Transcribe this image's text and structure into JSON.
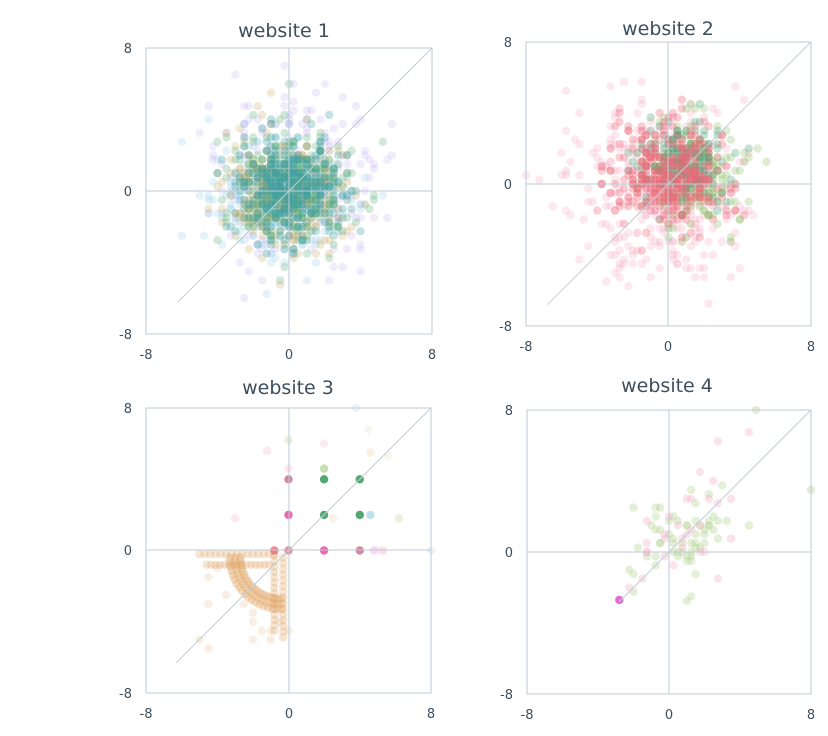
{
  "chart_data": [
    {
      "type": "scatter",
      "title": "website 1",
      "xlim": [
        -8,
        8
      ],
      "ylim": [
        -8,
        8
      ],
      "xticks": [
        "-8",
        "0",
        "8"
      ],
      "yticks": [
        "-8",
        "0",
        "8"
      ],
      "grid": false,
      "reference_line": "y = x",
      "series": [
        {
          "color": "#b9a8f2",
          "cx": 0.3,
          "cy": 0.4,
          "sx": 2.4,
          "sy": 2.3,
          "n": 230,
          "opacity": 0.22
        },
        {
          "color": "#8fcfe6",
          "cx": -0.6,
          "cy": -0.4,
          "sx": 1.9,
          "sy": 1.7,
          "n": 300,
          "opacity": 0.25
        },
        {
          "color": "#c9a85a",
          "cx": -0.3,
          "cy": -0.2,
          "sx": 1.8,
          "sy": 1.6,
          "n": 320,
          "opacity": 0.25
        },
        {
          "color": "#5fb07a",
          "cx": 0.1,
          "cy": 0.2,
          "sx": 1.6,
          "sy": 1.5,
          "n": 330,
          "opacity": 0.28
        },
        {
          "color": "#3e9fa3",
          "cx": 0.0,
          "cy": 0.1,
          "sx": 1.4,
          "sy": 1.4,
          "n": 340,
          "opacity": 0.3
        }
      ]
    },
    {
      "type": "scatter",
      "title": "website 2",
      "xlim": [
        -8,
        8
      ],
      "ylim": [
        -8,
        8
      ],
      "xticks": [
        "-8",
        "0",
        "8"
      ],
      "yticks": [
        "-8",
        "0",
        "8"
      ],
      "grid": false,
      "reference_line": "y = x",
      "series": [
        {
          "color": "#f4a3bd",
          "cx": -0.6,
          "cy": -0.5,
          "sx": 2.4,
          "sy": 2.4,
          "n": 330,
          "opacity": 0.25
        },
        {
          "color": "#8ebf6a",
          "cx": 1.5,
          "cy": 0.3,
          "sx": 1.4,
          "sy": 1.8,
          "n": 180,
          "opacity": 0.3
        },
        {
          "color": "#44a374",
          "cx": 0.7,
          "cy": 1.2,
          "sx": 1.3,
          "sy": 1.1,
          "n": 200,
          "opacity": 0.3
        },
        {
          "color": "#ec6a7a",
          "cx": 0.0,
          "cy": 0.6,
          "sx": 1.6,
          "sy": 1.4,
          "n": 360,
          "opacity": 0.33
        }
      ]
    },
    {
      "type": "scatter",
      "title": "website 3",
      "xlim": [
        -8,
        8
      ],
      "ylim": [
        -8,
        8
      ],
      "xticks": [
        "-8",
        "0",
        "8"
      ],
      "yticks": [
        "-8",
        "0",
        "8"
      ],
      "grid": false,
      "reference_line": "y = x",
      "arc_series": {
        "color": "#e0a262",
        "opacity": 0.35
      },
      "points": [
        {
          "x": 0,
          "y": 4,
          "color": "#c46a8e",
          "opacity": 0.8
        },
        {
          "x": 0,
          "y": 2,
          "color": "#e85aa8",
          "opacity": 0.9
        },
        {
          "x": 0,
          "y": 0,
          "color": "#ec6a7a",
          "opacity": 0.8
        },
        {
          "x": -0.8,
          "y": 0,
          "color": "#ec6a7a",
          "opacity": 0.8
        },
        {
          "x": 2,
          "y": 4,
          "color": "#3e9f62",
          "opacity": 0.9
        },
        {
          "x": 2,
          "y": 2,
          "color": "#3e9f62",
          "opacity": 0.9
        },
        {
          "x": 2,
          "y": 0,
          "color": "#e85aa8",
          "opacity": 0.9
        },
        {
          "x": 4,
          "y": 4,
          "color": "#3e9f62",
          "opacity": 0.9
        },
        {
          "x": 4,
          "y": 2,
          "color": "#3e9f62",
          "opacity": 0.9
        },
        {
          "x": 4,
          "y": 0,
          "color": "#c46a8e",
          "opacity": 0.8
        },
        {
          "x": 4.6,
          "y": 2,
          "color": "#8fcfe6",
          "opacity": 0.6
        },
        {
          "x": 2,
          "y": 4.6,
          "color": "#8ebf6a",
          "opacity": 0.5
        },
        {
          "x": 0,
          "y": 4.6,
          "color": "#f4a3bd",
          "opacity": 0.25
        },
        {
          "x": 0,
          "y": 6.2,
          "color": "#c9d9b0",
          "opacity": 0.4
        },
        {
          "x": 4.8,
          "y": 0,
          "color": "#f4a3f0",
          "opacity": 0.4
        },
        {
          "x": 5.3,
          "y": 0,
          "color": "#f4a3bd",
          "opacity": 0.35
        },
        {
          "x": 6.2,
          "y": 1.8,
          "color": "#c9d9b0",
          "opacity": 0.4
        },
        {
          "x": 4.6,
          "y": 5.5,
          "color": "#f4d5a8",
          "opacity": 0.35
        },
        {
          "x": 5.6,
          "y": 5.3,
          "color": "#e8e8d0",
          "opacity": 0.4
        },
        {
          "x": 4.5,
          "y": 6.8,
          "color": "#e8e8d0",
          "opacity": 0.4
        },
        {
          "x": 3.8,
          "y": 8.0,
          "color": "#dde6ee",
          "opacity": 0.5
        },
        {
          "x": -1.2,
          "y": 5.6,
          "color": "#f4a3bd",
          "opacity": 0.25
        },
        {
          "x": -3,
          "y": 1.8,
          "color": "#f4a3bd",
          "opacity": 0.25
        },
        {
          "x": 2,
          "y": 6,
          "color": "#f4a3bd",
          "opacity": 0.2
        },
        {
          "x": 2.5,
          "y": 1.8,
          "color": "#f4d5a8",
          "opacity": 0.3
        },
        {
          "x": 5,
          "y": 0,
          "color": "#f4d5f0",
          "opacity": 0.4
        },
        {
          "x": 8,
          "y": 0,
          "color": "#dde6ee",
          "opacity": 0.5
        }
      ]
    },
    {
      "type": "scatter",
      "title": "website 4",
      "xlim": [
        -8,
        8
      ],
      "ylim": [
        -8,
        8
      ],
      "xticks": [
        "-8",
        "0",
        "8"
      ],
      "yticks": [
        "-8",
        "0",
        "8"
      ],
      "grid": false,
      "reference_line": "y = x",
      "series": [
        {
          "color": "#b9d69a",
          "cx": 0.6,
          "cy": 0.6,
          "sx": 1.6,
          "sy": 1.5,
          "n": 60,
          "opacity": 0.4,
          "corr": 0.55
        },
        {
          "color": "#f4a3bd",
          "cx": 0.8,
          "cy": 0.8,
          "sx": 1.8,
          "sy": 1.6,
          "n": 30,
          "opacity": 0.3,
          "corr": 0.5
        }
      ],
      "points": [
        {
          "x": -2.8,
          "y": -2.7,
          "color": "#e85ad0",
          "opacity": 0.9
        },
        {
          "x": 8,
          "y": 3.5,
          "color": "#c9d9b0",
          "opacity": 0.5
        },
        {
          "x": 4.9,
          "y": 8.0,
          "color": "#c9d9b0",
          "opacity": 0.5
        }
      ]
    }
  ]
}
